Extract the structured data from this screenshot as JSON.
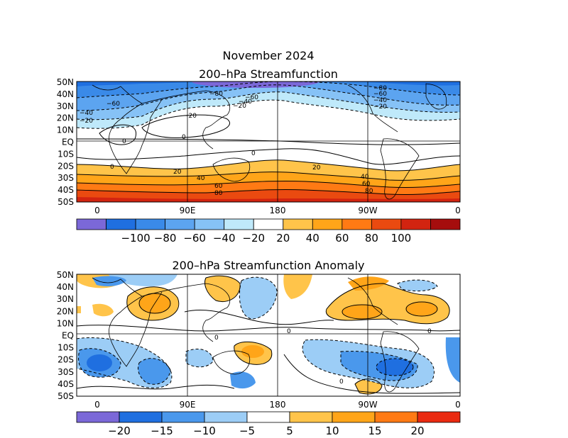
{
  "title": "November 2024",
  "top_panel": {
    "title": "200–hPa Streamfunction",
    "lat_labels": [
      "50N",
      "40N",
      "30N",
      "20N",
      "10N",
      "EQ",
      "10S",
      "20S",
      "30S",
      "40S",
      "50S"
    ],
    "lon_labels": [
      "0",
      "90E",
      "180",
      "90W",
      "0"
    ],
    "contour_labels": [
      "−60",
      "−80",
      "−60",
      "−40",
      "−20",
      "−80",
      "−60",
      "−40",
      "−20",
      "−40",
      "−20",
      "0",
      "0",
      "0",
      "0",
      "−20",
      "20",
      "40",
      "60",
      "80",
      "20",
      "40",
      "60",
      "80"
    ],
    "colorbar": {
      "tick_labels": [
        "−100",
        "−80",
        "−60",
        "−40",
        "−20",
        "20",
        "40",
        "60",
        "80",
        "100"
      ],
      "colors": [
        "#7b68d8",
        "#1f6fe0",
        "#3a8ae8",
        "#5ca4f0",
        "#86c2f6",
        "#bfe9fa",
        "#ffffff",
        "#ffc44a",
        "#ffa519",
        "#ff7a14",
        "#ea4a10",
        "#d22410",
        "#a50d0d"
      ]
    }
  },
  "bottom_panel": {
    "title": "200–hPa Streamfunction Anomaly",
    "lat_labels": [
      "50N",
      "40N",
      "30N",
      "20N",
      "10N",
      "EQ",
      "10S",
      "20S",
      "30S",
      "40S",
      "50S"
    ],
    "lon_labels": [
      "0",
      "90E",
      "180",
      "90W",
      "0"
    ],
    "contour_labels": [
      "0",
      "0",
      "0",
      "0"
    ],
    "colorbar": {
      "tick_labels": [
        "−20",
        "−15",
        "−10",
        "−5",
        "5",
        "10",
        "15",
        "20"
      ],
      "colors": [
        "#7b68d8",
        "#1f6fe0",
        "#4a98ec",
        "#9ccdf6",
        "#ffffff",
        "#ffc44a",
        "#ffa519",
        "#ff7a14",
        "#ea2a10"
      ]
    }
  }
}
